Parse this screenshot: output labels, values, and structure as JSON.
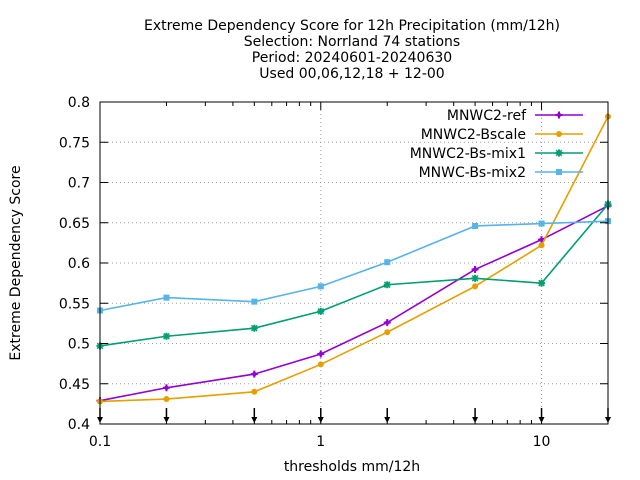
{
  "chart_data": {
    "type": "line",
    "title_lines": [
      "Extreme Dependency Score  for 12h Precipitation (mm/12h)",
      "Selection: Norrland     74 stations",
      "Period: 20240601-20240630",
      "Used 00,06,12,18 + 12-00"
    ],
    "xlabel": "thresholds mm/12h",
    "ylabel": "Extreme Dependency Score",
    "x_scale": "log",
    "xlim": [
      0.1,
      20
    ],
    "ylim": [
      0.4,
      0.8
    ],
    "x_ticks": [
      {
        "value": 0.1,
        "label": "0.1"
      },
      {
        "value": 1,
        "label": "1"
      },
      {
        "value": 10,
        "label": "10"
      }
    ],
    "y_ticks": [
      {
        "value": 0.4,
        "label": "0.4"
      },
      {
        "value": 0.45,
        "label": "0.45"
      },
      {
        "value": 0.5,
        "label": "0.5"
      },
      {
        "value": 0.55,
        "label": "0.55"
      },
      {
        "value": 0.6,
        "label": "0.6"
      },
      {
        "value": 0.65,
        "label": "0.65"
      },
      {
        "value": 0.7,
        "label": "0.7"
      },
      {
        "value": 0.75,
        "label": "0.75"
      },
      {
        "value": 0.8,
        "label": "0.8"
      }
    ],
    "grid": true,
    "legend_position": "top-right",
    "x": [
      0.1,
      0.2,
      0.5,
      1,
      2,
      5,
      10,
      20
    ],
    "series": [
      {
        "name": "MNWC2-ref",
        "color": "#9400d3",
        "marker": "plus",
        "values": [
          0.429,
          0.445,
          0.462,
          0.487,
          0.526,
          0.592,
          0.629,
          0.671
        ]
      },
      {
        "name": "MNWC2-Bscale",
        "color": "#e69f00",
        "marker": "circle",
        "values": [
          0.428,
          0.431,
          0.44,
          0.474,
          0.514,
          0.571,
          0.622,
          0.782
        ]
      },
      {
        "name": "MNWC2-Bs-mix1",
        "color": "#009e73",
        "marker": "star",
        "values": [
          0.497,
          0.509,
          0.519,
          0.54,
          0.573,
          0.581,
          0.575,
          0.673
        ]
      },
      {
        "name": "MNWC-Bs-mix2",
        "color": "#56b4e9",
        "marker": "box",
        "values": [
          0.541,
          0.557,
          0.552,
          0.571,
          0.601,
          0.646,
          0.649,
          0.652
        ]
      }
    ]
  }
}
